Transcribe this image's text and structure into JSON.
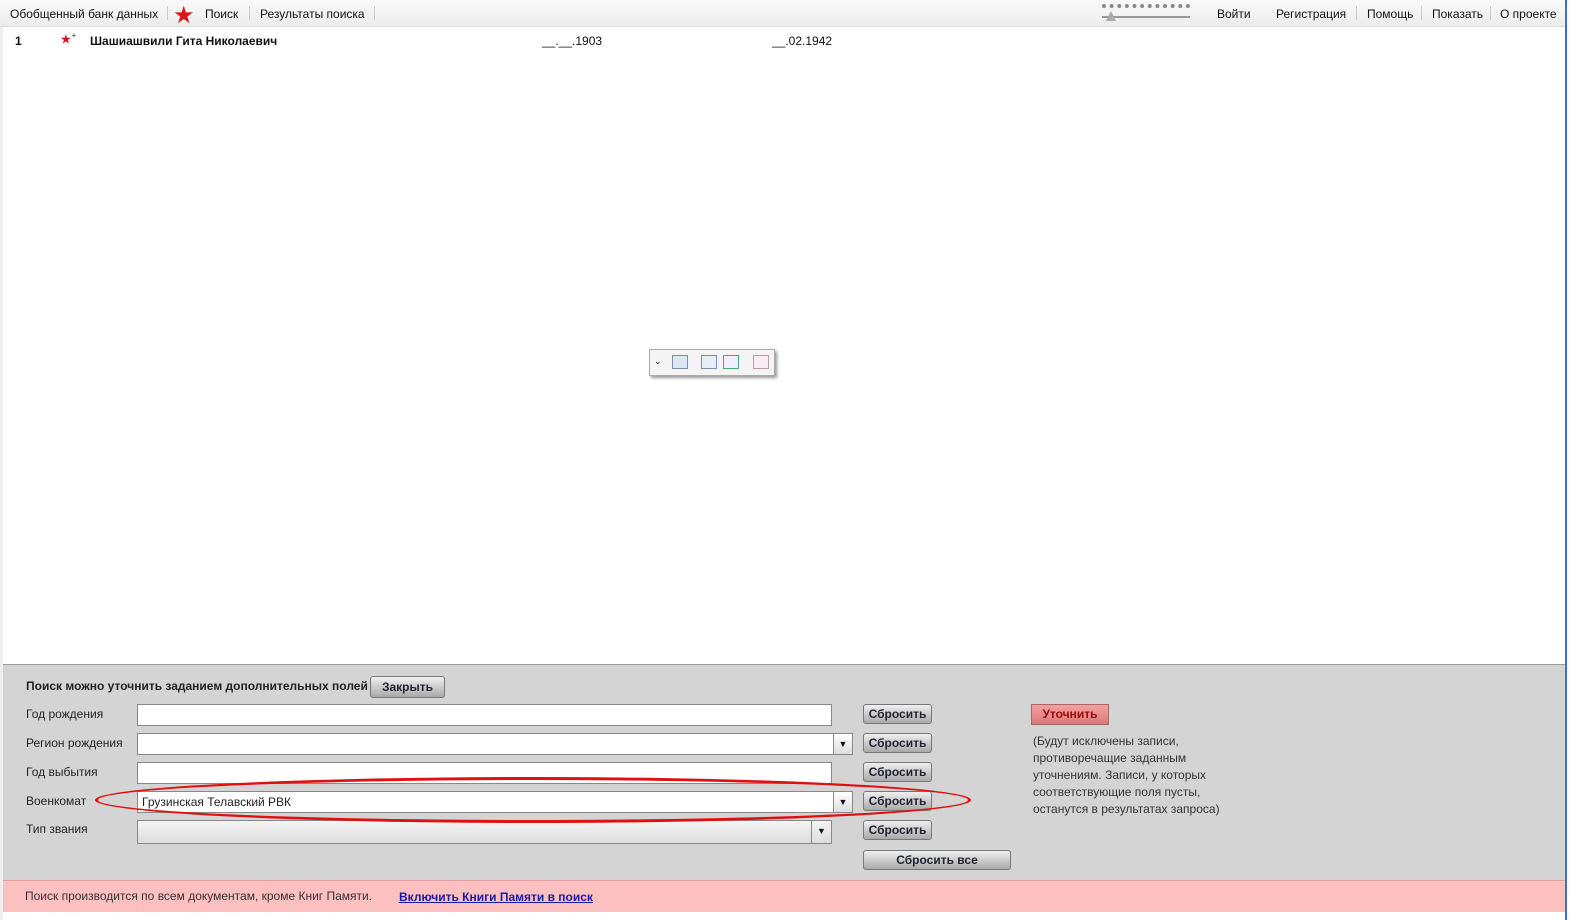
{
  "topbar": {
    "site": "Обобщенный банк данных",
    "search": "Поиск",
    "results": "Результаты поиска",
    "login": "Войти",
    "register": "Регистрация",
    "help": "Помощь",
    "show": "Показать",
    "about": "О проекте"
  },
  "results": [
    {
      "num": "1",
      "name": "Шашиашвили Гита Николаевич",
      "birth": "__.__.1903",
      "death": "__.02.1942"
    }
  ],
  "toolbar_icons": [
    "expand-icon",
    "save-icon",
    "link-icon",
    "export-icon",
    "mail-icon"
  ],
  "refine": {
    "title": "Поиск можно уточнить заданием дополнительных полей",
    "close": "Закрыть",
    "fields": [
      {
        "label": "Год рождения",
        "value": ""
      },
      {
        "label": "Регион рождения",
        "value": ""
      },
      {
        "label": "Год выбытия",
        "value": ""
      },
      {
        "label": "Военкомат",
        "value": "Грузинская Телавский РВК"
      },
      {
        "label": "Тип звания",
        "value": ""
      }
    ],
    "reset": "Сбросить",
    "reset_all": "Сбросить все",
    "apply": "Уточнить",
    "note": "(Будут исключены записи, противоречащие заданным уточнениям. Записи, у которых соответствующие поля пусты, останутся в результатах запроса)"
  },
  "footer": {
    "text": "Поиск производится по всем документам, кроме Книг Памяти.",
    "link": "Включить Книги Памяти в поиск"
  },
  "colors": {
    "star": "#e01515",
    "highlight": "#e01010",
    "footer_bg": "#fcc0c0"
  }
}
